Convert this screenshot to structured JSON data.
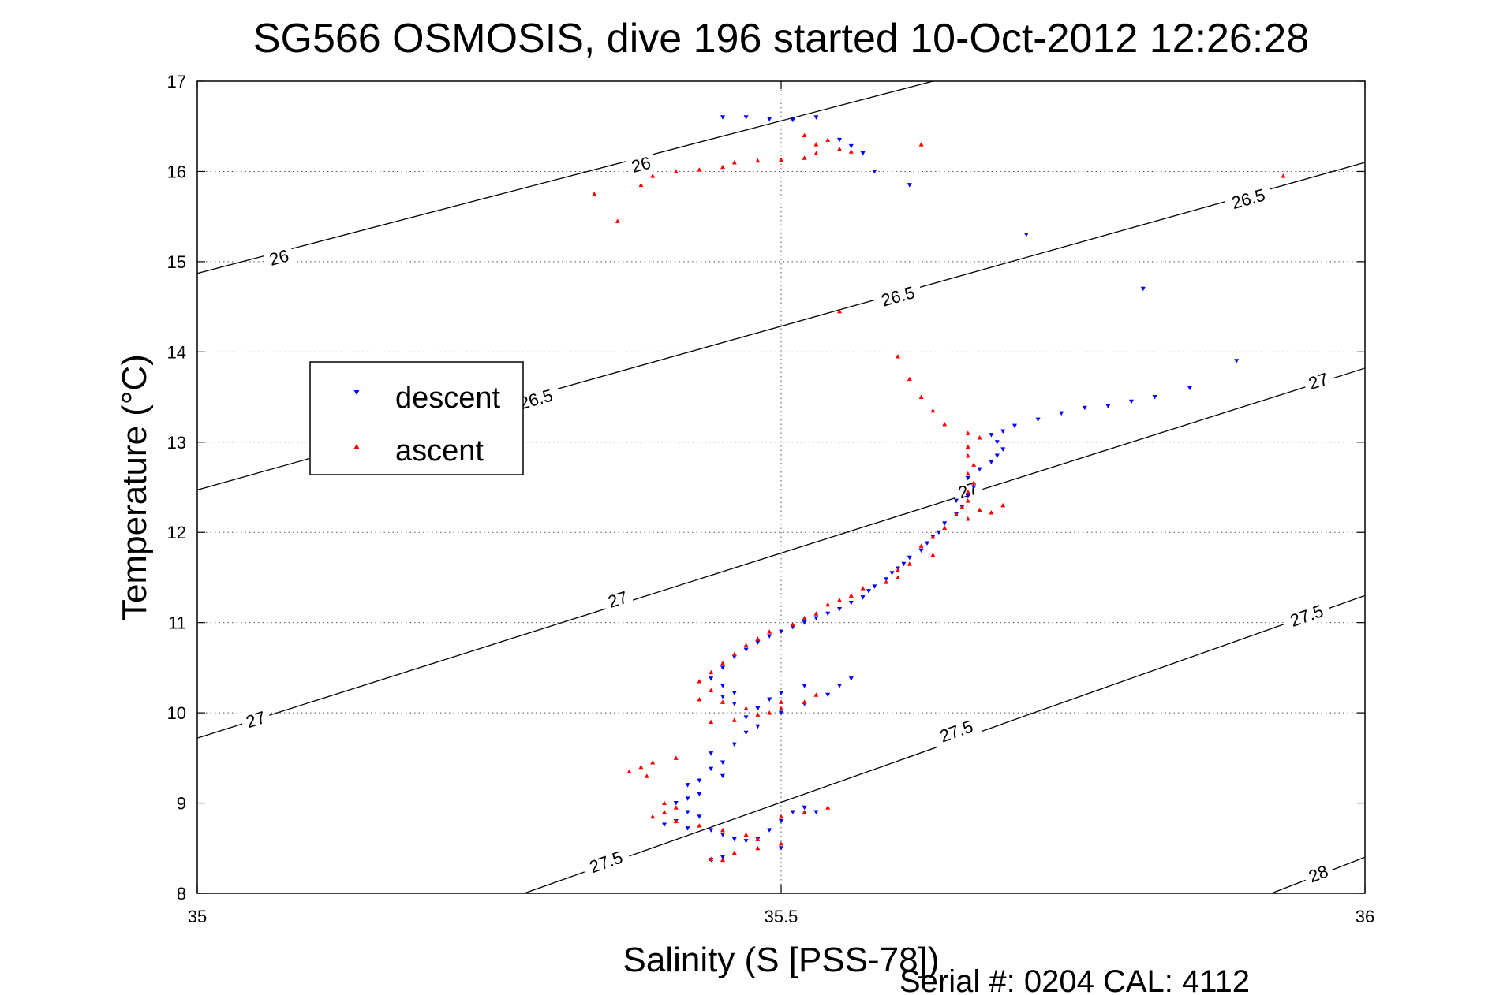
{
  "chart_data": {
    "type": "scatter",
    "title": "SG566 OSMOSIS, dive 196 started 10-Oct-2012 12:26:28",
    "xlabel": "Salinity (S [PSS-78])",
    "ylabel": "Temperature (°C)",
    "xlim": [
      35,
      36
    ],
    "ylim": [
      8,
      17
    ],
    "xticks": [
      "35",
      "35.5",
      "36"
    ],
    "yticks": [
      "8",
      "9",
      "10",
      "11",
      "12",
      "13",
      "14",
      "15",
      "16",
      "17"
    ],
    "grid": "dotted",
    "footer": "Serial #: 0204  CAL: 4112",
    "legend": {
      "placement": "left",
      "entries": [
        "descent",
        "ascent"
      ]
    },
    "colors": {
      "descent": "#0000ff",
      "ascent": "#ff0000",
      "contour": "#000000"
    },
    "contours": [
      {
        "level": "26",
        "points": [
          [
            35,
            14.87
          ],
          [
            35.63,
            17.0
          ]
        ],
        "labels": [
          [
            35.07,
            15.05
          ],
          [
            35.38,
            16.08
          ]
        ]
      },
      {
        "level": "26.5",
        "points": [
          [
            35,
            12.47
          ],
          [
            36,
            16.1
          ]
        ],
        "labels": [
          [
            35.29,
            13.48
          ],
          [
            35.6,
            14.62
          ],
          [
            35.9,
            15.7
          ]
        ]
      },
      {
        "level": "27",
        "points": [
          [
            35,
            9.72
          ],
          [
            36,
            13.82
          ]
        ],
        "labels": [
          [
            35.05,
            9.93
          ],
          [
            35.36,
            11.26
          ],
          [
            35.66,
            12.47
          ],
          [
            35.96,
            13.68
          ]
        ]
      },
      {
        "level": "27.5",
        "points": [
          [
            35.28,
            8.0
          ],
          [
            36,
            11.3
          ]
        ],
        "labels": [
          [
            35.35,
            8.35
          ],
          [
            35.65,
            9.8
          ],
          [
            35.95,
            11.08
          ]
        ]
      },
      {
        "level": "28",
        "points": [
          [
            35.92,
            8.0
          ],
          [
            36,
            8.4
          ]
        ],
        "labels": [
          [
            35.96,
            8.22
          ]
        ]
      }
    ],
    "series": [
      {
        "name": "descent",
        "marker": "triangle-down",
        "points": [
          [
            35.45,
            16.6
          ],
          [
            35.47,
            16.6
          ],
          [
            35.49,
            16.58
          ],
          [
            35.51,
            16.57
          ],
          [
            35.53,
            16.6
          ],
          [
            35.55,
            16.35
          ],
          [
            35.56,
            16.28
          ],
          [
            35.57,
            16.2
          ],
          [
            35.58,
            16.0
          ],
          [
            35.61,
            15.85
          ],
          [
            35.71,
            15.3
          ],
          [
            35.81,
            14.7
          ],
          [
            35.89,
            13.9
          ],
          [
            35.85,
            13.6
          ],
          [
            35.82,
            13.5
          ],
          [
            35.8,
            13.45
          ],
          [
            35.78,
            13.4
          ],
          [
            35.76,
            13.38
          ],
          [
            35.74,
            13.32
          ],
          [
            35.72,
            13.25
          ],
          [
            35.7,
            13.18
          ],
          [
            35.69,
            13.12
          ],
          [
            35.68,
            13.08
          ],
          [
            35.685,
            13.0
          ],
          [
            35.69,
            12.92
          ],
          [
            35.685,
            12.85
          ],
          [
            35.68,
            12.78
          ],
          [
            35.67,
            12.7
          ],
          [
            35.66,
            12.6
          ],
          [
            35.665,
            12.5
          ],
          [
            35.66,
            12.4
          ],
          [
            35.65,
            12.35
          ],
          [
            35.655,
            12.28
          ],
          [
            35.65,
            12.2
          ],
          [
            35.64,
            12.1
          ],
          [
            35.635,
            12.0
          ],
          [
            35.63,
            11.95
          ],
          [
            35.625,
            11.88
          ],
          [
            35.62,
            11.8
          ],
          [
            35.61,
            11.72
          ],
          [
            35.605,
            11.65
          ],
          [
            35.6,
            11.6
          ],
          [
            35.595,
            11.55
          ],
          [
            35.59,
            11.48
          ],
          [
            35.58,
            11.4
          ],
          [
            35.575,
            11.35
          ],
          [
            35.57,
            11.28
          ],
          [
            35.56,
            11.22
          ],
          [
            35.55,
            11.15
          ],
          [
            35.54,
            11.1
          ],
          [
            35.53,
            11.05
          ],
          [
            35.52,
            11.0
          ],
          [
            35.51,
            10.95
          ],
          [
            35.5,
            10.9
          ],
          [
            35.49,
            10.85
          ],
          [
            35.48,
            10.78
          ],
          [
            35.47,
            10.7
          ],
          [
            35.46,
            10.62
          ],
          [
            35.45,
            10.5
          ],
          [
            35.44,
            10.38
          ],
          [
            35.45,
            10.3
          ],
          [
            35.46,
            10.22
          ],
          [
            35.45,
            10.18
          ],
          [
            35.46,
            10.1
          ],
          [
            35.48,
            10.05
          ],
          [
            35.5,
            10.0
          ],
          [
            35.52,
            10.1
          ],
          [
            35.54,
            10.2
          ],
          [
            35.55,
            10.3
          ],
          [
            35.56,
            10.38
          ],
          [
            35.52,
            10.3
          ],
          [
            35.5,
            10.22
          ],
          [
            35.49,
            10.15
          ],
          [
            35.48,
            10.05
          ],
          [
            35.47,
            9.95
          ],
          [
            35.48,
            9.85
          ],
          [
            35.47,
            9.78
          ],
          [
            35.46,
            9.65
          ],
          [
            35.44,
            9.55
          ],
          [
            35.45,
            9.45
          ],
          [
            35.44,
            9.38
          ],
          [
            35.45,
            9.3
          ],
          [
            35.43,
            9.25
          ],
          [
            35.42,
            9.2
          ],
          [
            35.43,
            9.1
          ],
          [
            35.42,
            9.05
          ],
          [
            35.41,
            9.0
          ],
          [
            35.42,
            8.9
          ],
          [
            35.43,
            8.85
          ],
          [
            35.41,
            8.8
          ],
          [
            35.4,
            8.76
          ],
          [
            35.42,
            8.72
          ],
          [
            35.44,
            8.7
          ],
          [
            35.45,
            8.65
          ],
          [
            35.46,
            8.6
          ],
          [
            35.47,
            8.58
          ],
          [
            35.48,
            8.6
          ],
          [
            35.49,
            8.7
          ],
          [
            35.5,
            8.8
          ],
          [
            35.51,
            8.9
          ],
          [
            35.52,
            8.95
          ],
          [
            35.53,
            8.9
          ],
          [
            35.5,
            8.5
          ],
          [
            35.45,
            8.4
          ],
          [
            35.44,
            8.37
          ]
        ]
      },
      {
        "name": "ascent",
        "marker": "triangle-up",
        "points": [
          [
            35.34,
            15.75
          ],
          [
            35.36,
            15.45
          ],
          [
            35.38,
            15.85
          ],
          [
            35.39,
            15.95
          ],
          [
            35.41,
            16.0
          ],
          [
            35.43,
            16.02
          ],
          [
            35.45,
            16.05
          ],
          [
            35.46,
            16.1
          ],
          [
            35.48,
            16.12
          ],
          [
            35.5,
            16.13
          ],
          [
            35.52,
            16.15
          ],
          [
            35.53,
            16.2
          ],
          [
            35.55,
            16.25
          ],
          [
            35.54,
            16.35
          ],
          [
            35.52,
            16.4
          ],
          [
            35.53,
            16.3
          ],
          [
            35.56,
            16.22
          ],
          [
            35.62,
            16.3
          ],
          [
            35.55,
            14.45
          ],
          [
            35.6,
            13.95
          ],
          [
            35.61,
            13.7
          ],
          [
            35.62,
            13.5
          ],
          [
            35.63,
            13.35
          ],
          [
            35.64,
            13.2
          ],
          [
            35.66,
            13.1
          ],
          [
            35.67,
            13.05
          ],
          [
            35.66,
            12.95
          ],
          [
            35.66,
            12.85
          ],
          [
            35.665,
            12.75
          ],
          [
            35.66,
            12.65
          ],
          [
            35.665,
            12.55
          ],
          [
            35.66,
            12.45
          ],
          [
            35.66,
            12.35
          ],
          [
            35.655,
            12.28
          ],
          [
            35.65,
            12.2
          ],
          [
            35.67,
            12.25
          ],
          [
            35.69,
            12.3
          ],
          [
            35.68,
            12.22
          ],
          [
            35.66,
            12.15
          ],
          [
            35.64,
            12.05
          ],
          [
            35.63,
            11.95
          ],
          [
            35.62,
            11.85
          ],
          [
            35.63,
            11.75
          ],
          [
            35.61,
            11.65
          ],
          [
            35.6,
            11.58
          ],
          [
            35.6,
            11.5
          ],
          [
            35.59,
            11.45
          ],
          [
            35.57,
            11.38
          ],
          [
            35.56,
            11.3
          ],
          [
            35.55,
            11.25
          ],
          [
            35.54,
            11.2
          ],
          [
            35.53,
            11.1
          ],
          [
            35.52,
            11.05
          ],
          [
            35.51,
            10.98
          ],
          [
            35.49,
            10.9
          ],
          [
            35.48,
            10.82
          ],
          [
            35.47,
            10.75
          ],
          [
            35.46,
            10.65
          ],
          [
            35.45,
            10.55
          ],
          [
            35.44,
            10.45
          ],
          [
            35.43,
            10.35
          ],
          [
            35.44,
            10.25
          ],
          [
            35.43,
            10.15
          ],
          [
            35.45,
            10.12
          ],
          [
            35.47,
            10.05
          ],
          [
            35.49,
            10.0
          ],
          [
            35.5,
            10.05
          ],
          [
            35.52,
            10.12
          ],
          [
            35.53,
            10.2
          ],
          [
            35.5,
            10.12
          ],
          [
            35.48,
            9.98
          ],
          [
            35.46,
            9.92
          ],
          [
            35.44,
            9.9
          ],
          [
            35.41,
            9.5
          ],
          [
            35.39,
            9.45
          ],
          [
            35.38,
            9.4
          ],
          [
            35.37,
            9.35
          ],
          [
            35.385,
            9.3
          ],
          [
            35.4,
            9.0
          ],
          [
            35.41,
            8.95
          ],
          [
            35.4,
            8.9
          ],
          [
            35.39,
            8.85
          ],
          [
            35.41,
            8.8
          ],
          [
            35.43,
            8.75
          ],
          [
            35.45,
            8.7
          ],
          [
            35.47,
            8.65
          ],
          [
            35.48,
            8.6
          ],
          [
            35.5,
            8.85
          ],
          [
            35.52,
            8.9
          ],
          [
            35.54,
            8.95
          ],
          [
            35.5,
            8.55
          ],
          [
            35.48,
            8.5
          ],
          [
            35.46,
            8.45
          ],
          [
            35.44,
            8.38
          ],
          [
            35.45,
            8.37
          ],
          [
            35.93,
            15.95
          ]
        ]
      }
    ]
  }
}
